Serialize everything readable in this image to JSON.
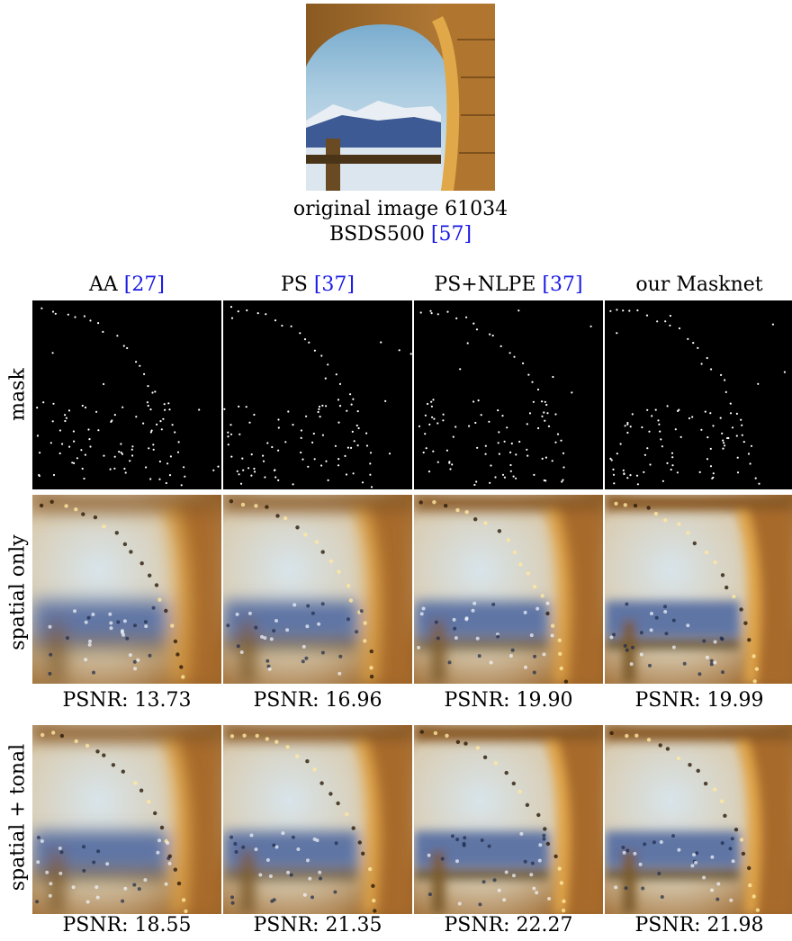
{
  "original": {
    "caption_line1": "original image 61034",
    "caption_line2_text": "BSDS500 ",
    "caption_line2_ref": "[57]"
  },
  "columns": [
    {
      "text": "AA ",
      "ref": "[27]"
    },
    {
      "text": "PS ",
      "ref": "[37]"
    },
    {
      "text": "PS+NLPE ",
      "ref": "[37]"
    },
    {
      "text": "our Masknet",
      "ref": ""
    }
  ],
  "rows": {
    "mask": "mask",
    "spatial": "spatial only",
    "tonal": "spatial + tonal"
  },
  "psnr_spatial": [
    "PSNR: 13.73",
    "PSNR: 16.96",
    "PSNR: 19.90",
    "PSNR: 19.99"
  ],
  "psnr_tonal": [
    "PSNR: 18.55",
    "PSNR: 21.35",
    "PSNR: 22.27",
    "PSNR: 21.98"
  ],
  "colors": {
    "reference_link": "#1a1ae6",
    "mask_bg": "#000000",
    "mask_dot": "#ffffff"
  }
}
